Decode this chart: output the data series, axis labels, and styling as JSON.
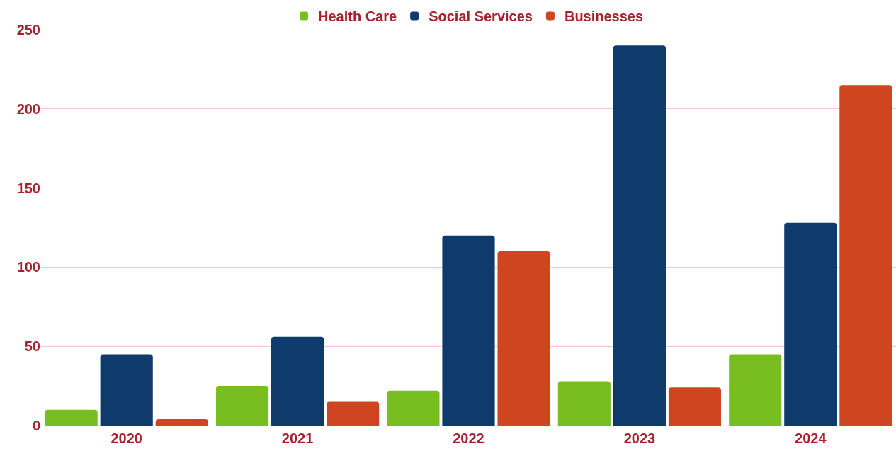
{
  "chart_data": {
    "type": "bar",
    "categories": [
      "2020",
      "2021",
      "2022",
      "2023",
      "2024"
    ],
    "series": [
      {
        "name": "Health Care",
        "color": "#78be20",
        "values": [
          10,
          25,
          22,
          28,
          45
        ]
      },
      {
        "name": "Social Services",
        "color": "#0f3a6c",
        "values": [
          45,
          56,
          120,
          240,
          128
        ]
      },
      {
        "name": "Businesses",
        "color": "#cf4520",
        "values": [
          4,
          15,
          110,
          24,
          215
        ]
      }
    ],
    "ylim": [
      0,
      250
    ],
    "yticks": [
      0,
      50,
      100,
      150,
      200,
      250
    ],
    "grid": "y",
    "legend": "top"
  }
}
